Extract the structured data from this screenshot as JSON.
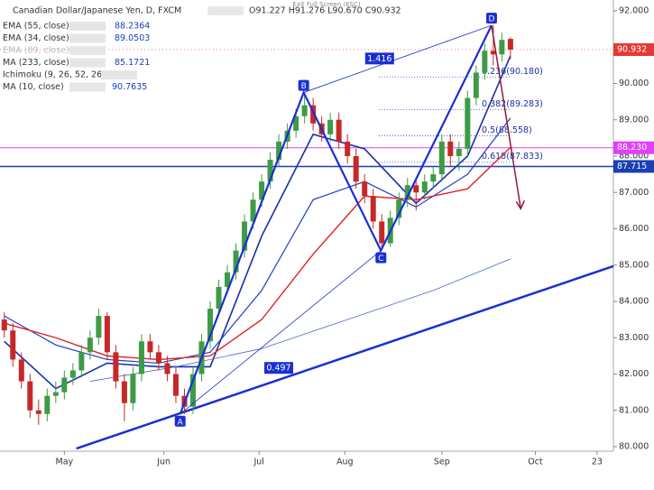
{
  "chart_data": {
    "type": "candlestick",
    "title": "Canadian Dollar/Japanese Yen, D, FXCM",
    "ohlc_text": "O91.227 H91.276 L90.670 C90.932",
    "exit_text": "Exit Full Screen (ESC)",
    "indicators_legend": [
      {
        "name": "EMA (55, close)",
        "value": "88.2364"
      },
      {
        "name": "EMA (34, close)",
        "value": "89.0503"
      },
      {
        "name": "EMA (89, close)"
      },
      {
        "name": "MA (233, close)",
        "value": "85.1721"
      },
      {
        "name": "Ichimoku (9, 26, 52, 26)"
      },
      {
        "name": "MA (10, close)",
        "value": "90.7635"
      }
    ],
    "ylim": [
      80,
      92
    ],
    "xlim": [
      -0.5,
      71
    ],
    "yticks": [
      {
        "value": 80,
        "label": "80.000"
      },
      {
        "value": 81,
        "label": "81.000"
      },
      {
        "value": 82,
        "label": "82.000"
      },
      {
        "value": 83,
        "label": "83.000"
      },
      {
        "value": 84,
        "label": "84.000"
      },
      {
        "value": 85,
        "label": "85.000"
      },
      {
        "value": 86,
        "label": "86.000"
      },
      {
        "value": 87,
        "label": "87.000"
      },
      {
        "value": 88,
        "label": "88.000"
      },
      {
        "value": 89,
        "label": "89.000"
      },
      {
        "value": 90,
        "label": "90.000"
      },
      {
        "value": 91,
        "label": "91.000"
      },
      {
        "value": 92,
        "label": "92.000"
      }
    ],
    "xticks": [
      {
        "value": 7,
        "label": "May"
      },
      {
        "value": 18.6,
        "label": "Jun"
      },
      {
        "value": 29.7,
        "label": "Jul"
      },
      {
        "value": 39.7,
        "label": "Aug"
      },
      {
        "value": 51,
        "label": "Sep"
      },
      {
        "value": 61.9,
        "label": "Oct"
      },
      {
        "value": 69.1,
        "label": "23"
      }
    ],
    "up_color": "#3d9b45",
    "down_color": "#c62828",
    "ohlc": [
      [
        83.5,
        83.7,
        83.0,
        83.2
      ],
      [
        83.2,
        83.4,
        82.2,
        82.4
      ],
      [
        82.4,
        82.6,
        81.6,
        81.8
      ],
      [
        81.8,
        82.0,
        80.8,
        81.0
      ],
      [
        81.0,
        81.3,
        80.6,
        80.9
      ],
      [
        80.9,
        81.6,
        80.7,
        81.4
      ],
      [
        81.4,
        81.8,
        81.2,
        81.5
      ],
      [
        81.5,
        82.1,
        81.3,
        81.9
      ],
      [
        81.9,
        82.3,
        81.7,
        82.1
      ],
      [
        82.1,
        82.8,
        81.9,
        82.6
      ],
      [
        82.6,
        83.2,
        82.4,
        83.0
      ],
      [
        83.0,
        83.8,
        82.8,
        83.6
      ],
      [
        83.6,
        83.7,
        82.4,
        82.6
      ],
      [
        82.6,
        82.8,
        81.6,
        81.8
      ],
      [
        81.8,
        82.0,
        80.7,
        81.2
      ],
      [
        81.2,
        82.2,
        81.0,
        82.0
      ],
      [
        82.0,
        83.1,
        81.8,
        82.9
      ],
      [
        82.9,
        83.1,
        82.4,
        82.6
      ],
      [
        82.6,
        82.8,
        82.1,
        82.3
      ],
      [
        82.3,
        82.5,
        81.8,
        82.0
      ],
      [
        82.0,
        82.2,
        81.2,
        81.4
      ],
      [
        81.4,
        81.6,
        80.9,
        81.1
      ],
      [
        81.1,
        82.2,
        80.9,
        82.0
      ],
      [
        82.0,
        83.1,
        81.8,
        82.9
      ],
      [
        82.9,
        84.0,
        82.7,
        83.8
      ],
      [
        83.8,
        84.6,
        83.6,
        84.4
      ],
      [
        84.4,
        85.0,
        84.2,
        84.8
      ],
      [
        84.8,
        85.6,
        84.6,
        85.4
      ],
      [
        85.4,
        86.4,
        85.2,
        86.2
      ],
      [
        86.2,
        87.0,
        86.0,
        86.8
      ],
      [
        86.8,
        87.5,
        86.6,
        87.3
      ],
      [
        87.3,
        88.1,
        87.1,
        87.9
      ],
      [
        87.9,
        88.6,
        87.7,
        88.4
      ],
      [
        88.4,
        88.9,
        88.2,
        88.7
      ],
      [
        88.7,
        89.3,
        88.5,
        89.1
      ],
      [
        89.1,
        89.75,
        88.9,
        89.4
      ],
      [
        89.4,
        89.6,
        88.7,
        88.9
      ],
      [
        88.9,
        89.1,
        88.4,
        88.6
      ],
      [
        88.6,
        89.2,
        88.4,
        89.0
      ],
      [
        89.0,
        89.2,
        88.2,
        88.4
      ],
      [
        88.4,
        88.6,
        87.8,
        88.0
      ],
      [
        88.0,
        88.2,
        87.1,
        87.3
      ],
      [
        87.3,
        87.5,
        86.7,
        86.9
      ],
      [
        86.9,
        87.1,
        86.0,
        86.2
      ],
      [
        86.2,
        86.4,
        85.4,
        85.6
      ],
      [
        85.6,
        86.5,
        85.5,
        86.3
      ],
      [
        86.3,
        87.0,
        86.1,
        86.8
      ],
      [
        86.8,
        87.4,
        86.6,
        87.2
      ],
      [
        87.2,
        87.4,
        86.5,
        87.0
      ],
      [
        87.0,
        87.5,
        86.8,
        87.3
      ],
      [
        87.3,
        87.7,
        87.1,
        87.5
      ],
      [
        87.5,
        88.6,
        87.3,
        88.4
      ],
      [
        88.4,
        88.6,
        87.7,
        88.0
      ],
      [
        88.0,
        88.4,
        87.6,
        88.2
      ],
      [
        88.2,
        89.8,
        88.0,
        89.6
      ],
      [
        89.6,
        90.5,
        89.4,
        90.3
      ],
      [
        90.3,
        91.1,
        90.1,
        90.9
      ],
      [
        90.9,
        91.6,
        90.5,
        90.8
      ],
      [
        90.8,
        91.4,
        90.6,
        91.2
      ],
      [
        91.227,
        91.276,
        90.67,
        90.932
      ]
    ],
    "series": [
      {
        "name": "MA (10, close)",
        "color": "#1a2fa8",
        "width": 1.6,
        "x": [
          0,
          6,
          12,
          18,
          24,
          30,
          36,
          42,
          48,
          54,
          59
        ],
        "values": [
          82.9,
          81.6,
          82.3,
          82.2,
          82.2,
          85.8,
          88.6,
          88.2,
          86.7,
          88.0,
          90.76
        ]
      },
      {
        "name": "EMA (34, close)",
        "color": "#1f3fc4",
        "width": 1.2,
        "x": [
          0,
          6,
          12,
          18,
          24,
          30,
          36,
          42,
          48,
          54,
          59
        ],
        "values": [
          83.6,
          82.8,
          82.4,
          82.3,
          82.6,
          84.3,
          86.8,
          87.3,
          86.6,
          87.5,
          89.05
        ]
      },
      {
        "name": "EMA (55, close)",
        "color": "#e02020",
        "width": 1.4,
        "x": [
          0,
          6,
          12,
          18,
          24,
          30,
          36,
          42,
          48,
          54,
          59
        ],
        "values": [
          83.4,
          83.0,
          82.5,
          82.4,
          82.5,
          83.5,
          85.3,
          86.9,
          86.8,
          87.1,
          88.24
        ]
      },
      {
        "name": "MA (233, close)",
        "color": "#4a6ad0",
        "width": 0.8,
        "x": [
          10,
          20,
          30,
          40,
          50,
          59
        ],
        "values": [
          81.8,
          82.2,
          82.7,
          83.5,
          84.3,
          85.17
        ]
      }
    ],
    "hlines": [
      {
        "value": 88.23,
        "label": "88.230",
        "color": "#e040fb"
      },
      {
        "value": 87.715,
        "label": "87.715",
        "color": "#1a3fb5"
      }
    ],
    "last_price": {
      "value": 90.932,
      "label": "90.932",
      "color": "#e53935"
    },
    "pattern": [
      {
        "label": "A",
        "x": 20.5,
        "price": 80.9
      },
      {
        "label": "B",
        "x": 34.9,
        "price": 89.75
      },
      {
        "label": "C",
        "x": 43.9,
        "price": 85.4
      },
      {
        "label": "D",
        "x": 56.8,
        "price": 91.6
      }
    ],
    "pattern_color": "#1a2fd0",
    "ratio_labels": [
      "1.416",
      "0.497"
    ],
    "fib_levels": [
      {
        "value": 90.18,
        "label": "0.236(90.180)"
      },
      {
        "value": 89.283,
        "label": "0.382(89.283)"
      },
      {
        "value": 88.558,
        "label": "0.5(88.558)"
      },
      {
        "value": 87.833,
        "label": "0.618(87.833)"
      }
    ],
    "trendline": {
      "x": [
        8.4,
        71
      ],
      "values": [
        79.95,
        84.97
      ],
      "color": "#1a2fd0"
    },
    "arrow": {
      "x": [
        56.8,
        60.2
      ],
      "values": [
        91.6,
        86.55
      ],
      "color": "#8e1b3a"
    }
  }
}
